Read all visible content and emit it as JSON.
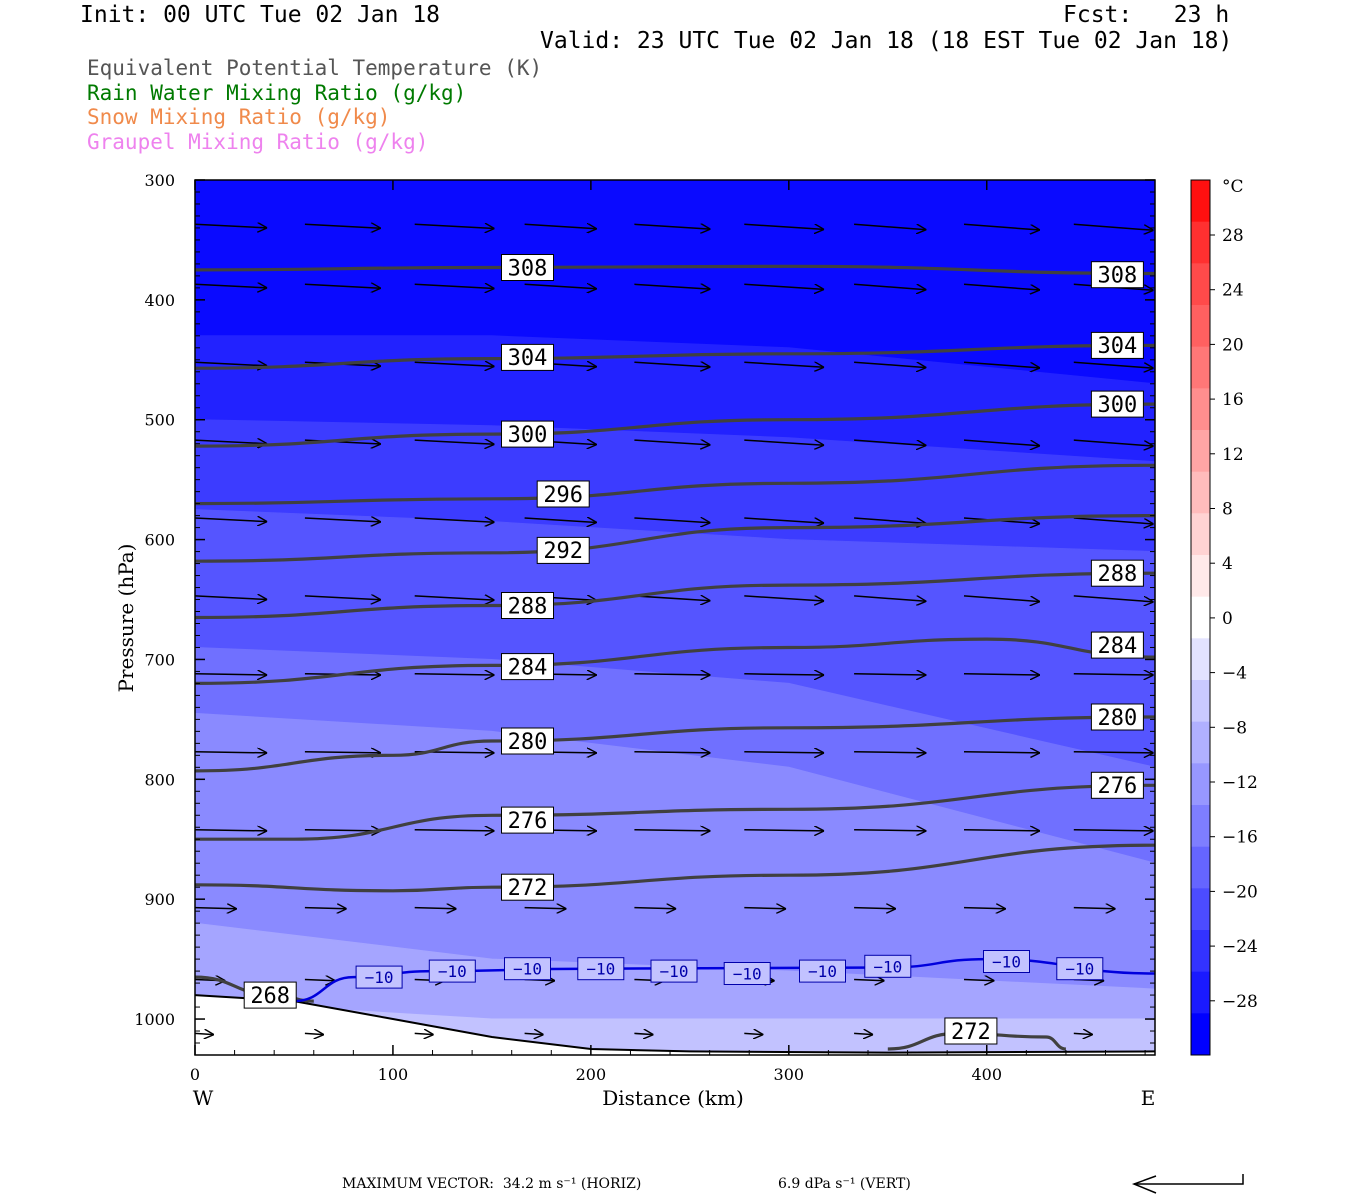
{
  "header": {
    "init": "Init: 00 UTC Tue 02 Jan 18",
    "fcst": "Fcst:   23 h",
    "valid": "Valid: 23 UTC Tue 02 Jan 18 (18 EST Tue 02 Jan 18)"
  },
  "fields": [
    {
      "label": "Equivalent Potential Temperature (K)",
      "color": "#555555"
    },
    {
      "label": "Rain Water Mixing Ratio (g/kg)",
      "color": "#007a00"
    },
    {
      "label": "Snow Mixing Ratio (g/kg)",
      "color": "#f08a4b"
    },
    {
      "label": "Graupel Mixing Ratio (g/kg)",
      "color": "#ee82ee"
    }
  ],
  "chart_data": {
    "type": "cross-section contour",
    "xlabel": "Distance (km)",
    "ylabel": "Pressure (hPa)",
    "xlim": [
      0,
      485
    ],
    "ylim": [
      1030,
      300
    ],
    "y_reversed": true,
    "x_ticks": [
      0,
      100,
      200,
      300,
      400
    ],
    "x_tick_labels": [
      "0",
      "100",
      "200",
      "300",
      "400"
    ],
    "y_ticks": [
      300,
      400,
      500,
      600,
      700,
      800,
      900,
      1000
    ],
    "y_tick_labels": [
      "300",
      "400",
      "500",
      "600",
      "700",
      "800",
      "900",
      "1000"
    ],
    "endpoints": {
      "left": "W",
      "right": "E"
    },
    "colorbar": {
      "unit": "°C",
      "labels": [
        "28",
        "24",
        "20",
        "16",
        "12",
        "8",
        "4",
        "0",
        "−4",
        "−8",
        "−12",
        "−16",
        "−20",
        "−24",
        "−28"
      ],
      "values": [
        28,
        24,
        20,
        16,
        12,
        8,
        4,
        0,
        -4,
        -8,
        -12,
        -16,
        -20,
        -24,
        -28
      ],
      "colors": [
        "#ff1010",
        "#ff3030",
        "#ff4a4a",
        "#ff6060",
        "#ff7777",
        "#ff8e8e",
        "#ffa5a5",
        "#ffbcbc",
        "#ffd3d3",
        "#ffe9e9",
        "#ffffff",
        "#e3e3ff",
        "#c9c9ff",
        "#b0b0ff",
        "#9797ff",
        "#7e7eff",
        "#6565ff",
        "#4c4cff",
        "#3333ff",
        "#1a1aff",
        "#0000ff"
      ]
    },
    "temperature_bands": [
      {
        "temp": -28,
        "color": "#0a0aff",
        "top": [
          [
            0,
            300
          ],
          [
            485,
            300
          ]
        ],
        "bottom": [
          [
            0,
            430
          ],
          [
            150,
            430
          ],
          [
            300,
            440
          ],
          [
            485,
            470
          ]
        ]
      },
      {
        "temp": -24,
        "color": "#2222ff",
        "top": [
          [
            0,
            430
          ],
          [
            150,
            430
          ],
          [
            300,
            440
          ],
          [
            485,
            470
          ]
        ],
        "bottom": [
          [
            0,
            500
          ],
          [
            150,
            505
          ],
          [
            300,
            515
          ],
          [
            485,
            535
          ]
        ]
      },
      {
        "temp": -20,
        "color": "#3c3cff",
        "top": [
          [
            0,
            500
          ],
          [
            150,
            505
          ],
          [
            300,
            515
          ],
          [
            485,
            535
          ]
        ],
        "bottom": [
          [
            0,
            575
          ],
          [
            150,
            585
          ],
          [
            300,
            600
          ],
          [
            485,
            610
          ]
        ]
      },
      {
        "temp": -16,
        "color": "#5555ff",
        "top": [
          [
            0,
            575
          ],
          [
            150,
            585
          ],
          [
            300,
            600
          ],
          [
            485,
            610
          ]
        ],
        "bottom": [
          [
            0,
            690
          ],
          [
            150,
            700
          ],
          [
            300,
            720
          ],
          [
            485,
            790
          ]
        ]
      },
      {
        "temp": -12,
        "color": "#7070ff",
        "top": [
          [
            0,
            690
          ],
          [
            150,
            700
          ],
          [
            300,
            720
          ],
          [
            485,
            790
          ]
        ],
        "bottom": [
          [
            0,
            745
          ],
          [
            150,
            760
          ],
          [
            300,
            790
          ],
          [
            485,
            870
          ]
        ]
      },
      {
        "temp": -8,
        "color": "#8a8aff",
        "top": [
          [
            0,
            745
          ],
          [
            150,
            760
          ],
          [
            300,
            790
          ],
          [
            485,
            870
          ]
        ],
        "bottom": [
          [
            0,
            920
          ],
          [
            150,
            950
          ],
          [
            300,
            960
          ],
          [
            485,
            975
          ]
        ]
      },
      {
        "temp": -4,
        "color": "#a5a5ff",
        "top": [
          [
            0,
            920
          ],
          [
            150,
            950
          ],
          [
            300,
            960
          ],
          [
            485,
            975
          ]
        ],
        "bottom": [
          [
            0,
            985
          ],
          [
            150,
            1000
          ],
          [
            300,
            1000
          ],
          [
            485,
            1000
          ]
        ]
      },
      {
        "temp": 0,
        "color": "#c2c2ff",
        "top": [
          [
            0,
            985
          ],
          [
            150,
            1000
          ],
          [
            300,
            1000
          ],
          [
            485,
            1000
          ]
        ],
        "bottom": [
          [
            0,
            1030
          ],
          [
            485,
            1030
          ]
        ]
      }
    ],
    "terrain": [
      [
        0,
        980
      ],
      [
        50,
        985
      ],
      [
        100,
        1000
      ],
      [
        150,
        1015
      ],
      [
        200,
        1025
      ],
      [
        250,
        1027
      ],
      [
        350,
        1028
      ],
      [
        485,
        1027
      ]
    ],
    "theta_e_contours": [
      {
        "value": 308,
        "label": "308",
        "points": [
          [
            0,
            375
          ],
          [
            150,
            373
          ],
          [
            300,
            372
          ],
          [
            485,
            378
          ]
        ],
        "labels_at": [
          [
            168,
            373
          ],
          [
            466,
            379
          ]
        ]
      },
      {
        "value": 304,
        "label": "304",
        "points": [
          [
            0,
            457
          ],
          [
            150,
            449
          ],
          [
            300,
            445
          ],
          [
            485,
            438
          ]
        ],
        "labels_at": [
          [
            168,
            448
          ],
          [
            466,
            438
          ]
        ]
      },
      {
        "value": 300,
        "label": "300",
        "points": [
          [
            0,
            522
          ],
          [
            150,
            512
          ],
          [
            300,
            500
          ],
          [
            485,
            487
          ]
        ],
        "labels_at": [
          [
            168,
            512
          ],
          [
            466,
            487
          ]
        ]
      },
      {
        "value": 296,
        "label": "296",
        "points": [
          [
            0,
            570
          ],
          [
            150,
            566
          ],
          [
            300,
            553
          ],
          [
            485,
            538
          ]
        ],
        "labels_at": [
          [
            186,
            562
          ]
        ]
      },
      {
        "value": 292,
        "label": "292",
        "points": [
          [
            0,
            618
          ],
          [
            150,
            611
          ],
          [
            300,
            590
          ],
          [
            485,
            580
          ]
        ],
        "labels_at": [
          [
            186,
            609
          ]
        ]
      },
      {
        "value": 288,
        "label": "288",
        "points": [
          [
            0,
            665
          ],
          [
            150,
            655
          ],
          [
            300,
            638
          ],
          [
            485,
            628
          ]
        ],
        "labels_at": [
          [
            168,
            655
          ],
          [
            466,
            628
          ]
        ]
      },
      {
        "value": 284,
        "label": "284",
        "points": [
          [
            0,
            720
          ],
          [
            150,
            705
          ],
          [
            300,
            690
          ],
          [
            400,
            683
          ],
          [
            485,
            698
          ]
        ],
        "labels_at": [
          [
            168,
            706
          ],
          [
            466,
            688
          ]
        ]
      },
      {
        "value": 280,
        "label": "280",
        "points": [
          [
            0,
            793
          ],
          [
            100,
            780
          ],
          [
            150,
            768
          ],
          [
            300,
            757
          ],
          [
            485,
            748
          ]
        ],
        "labels_at": [
          [
            168,
            768
          ],
          [
            466,
            748
          ]
        ]
      },
      {
        "value": 276,
        "label": "276",
        "points": [
          [
            0,
            850
          ],
          [
            50,
            850
          ],
          [
            150,
            830
          ],
          [
            300,
            825
          ],
          [
            485,
            805
          ]
        ],
        "labels_at": [
          [
            168,
            834
          ],
          [
            466,
            805
          ]
        ]
      },
      {
        "value": 272,
        "label": "272",
        "points": [
          [
            0,
            888
          ],
          [
            100,
            893
          ],
          [
            150,
            890
          ],
          [
            300,
            880
          ],
          [
            485,
            855
          ]
        ],
        "labels_at": [
          [
            168,
            890
          ]
        ]
      },
      {
        "value": 268,
        "label": "268",
        "points": [
          [
            0,
            965
          ],
          [
            40,
            980
          ],
          [
            60,
            985
          ]
        ],
        "labels_at": [
          [
            38,
            980
          ]
        ]
      },
      {
        "value": 272,
        "label": "272",
        "points": [
          [
            350,
            1025
          ],
          [
            385,
            1012
          ],
          [
            430,
            1015
          ],
          [
            440,
            1025
          ]
        ],
        "labels_at": [
          [
            392,
            1010
          ]
        ]
      }
    ],
    "isotherm": {
      "value": -10,
      "label": "−10",
      "color": "#0000dd",
      "points": [
        [
          50,
          985
        ],
        [
          80,
          965
        ],
        [
          120,
          960
        ],
        [
          200,
          958
        ],
        [
          350,
          957
        ],
        [
          400,
          950
        ],
        [
          485,
          962
        ]
      ],
      "labels_at": [
        [
          93,
          965
        ],
        [
          130,
          960
        ],
        [
          168,
          958
        ],
        [
          205,
          958
        ],
        [
          242,
          960
        ],
        [
          279,
          962
        ],
        [
          317,
          960
        ],
        [
          350,
          956
        ],
        [
          410,
          952
        ],
        [
          447,
          958
        ]
      ]
    },
    "wind_vectors_note": "westerly wind vectors",
    "max_vector_horiz": "34.2 m s⁻¹ (HORIZ)",
    "max_vector_vert": "6.9 dPa s⁻¹ (VERT)",
    "max_vector_label": "MAXIMUM VECTOR:"
  }
}
